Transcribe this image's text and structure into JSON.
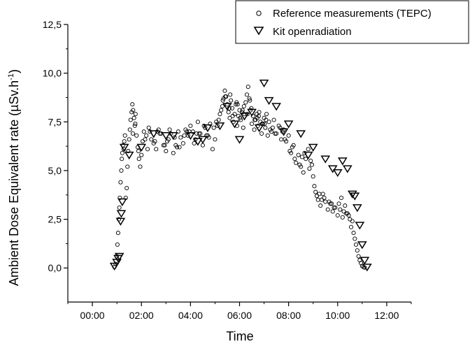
{
  "chart_data": {
    "type": "scatter",
    "xlabel": "Time",
    "ylabel": "Ambient Dose Equivalent rate (µSv.h",
    "ylabel_sup": "-1",
    "ylabel_close": ")",
    "xlim": [
      -1,
      13
    ],
    "ylim": [
      -1.75,
      12.5
    ],
    "xticks": [
      0,
      2,
      4,
      6,
      8,
      10,
      12
    ],
    "xtick_labels": [
      "00:00",
      "02:00",
      "04:00",
      "06:00",
      "08:00",
      "10:00",
      "12:00"
    ],
    "yticks": [
      0,
      2.5,
      5,
      7.5,
      10,
      12.5
    ],
    "ytick_labels": [
      "0,0",
      "2,5",
      "5,0",
      "7,5",
      "10,0",
      "12,5"
    ],
    "grid": false,
    "legend_placement": "top-right",
    "series": [
      {
        "name": "Reference measurements (TEPC)",
        "marker": "circle-open",
        "x": [
          0.9,
          0.95,
          1.0,
          1.02,
          1.05,
          1.08,
          1.1,
          1.12,
          1.15,
          1.18,
          1.2,
          1.22,
          1.25,
          1.28,
          1.3,
          1.33,
          1.36,
          1.4,
          1.43,
          1.46,
          1.5,
          1.53,
          1.56,
          1.6,
          1.63,
          1.66,
          1.7,
          1.73,
          1.76,
          1.8,
          1.85,
          1.9,
          1.95,
          2.0,
          2.05,
          2.1,
          2.2,
          2.3,
          2.4,
          2.5,
          2.6,
          2.7,
          2.8,
          2.9,
          3.0,
          3.1,
          3.2,
          3.3,
          3.4,
          3.5,
          3.6,
          3.7,
          3.8,
          3.9,
          4.0,
          4.1,
          4.2,
          4.3,
          4.4,
          4.5,
          4.6,
          4.7,
          4.8,
          4.9,
          5.0,
          5.1,
          5.2,
          5.3,
          5.35,
          5.4,
          5.45,
          5.5,
          5.55,
          5.6,
          5.65,
          5.7,
          5.75,
          5.8,
          5.85,
          5.9,
          5.95,
          6.0,
          6.05,
          6.1,
          6.15,
          6.2,
          6.25,
          6.3,
          6.35,
          6.4,
          6.45,
          6.5,
          6.55,
          6.6,
          6.65,
          6.7,
          6.75,
          6.8,
          6.85,
          6.9,
          6.95,
          7.0,
          7.05,
          7.1,
          7.15,
          7.2,
          7.3,
          7.4,
          7.5,
          7.6,
          7.7,
          7.8,
          7.9,
          8.0,
          8.1,
          8.2,
          8.3,
          8.4,
          8.5,
          8.6,
          8.7,
          8.8,
          8.9,
          9.0,
          9.05,
          9.1,
          9.15,
          9.2,
          9.3,
          9.4,
          9.5,
          9.6,
          9.7,
          9.8,
          9.9,
          10.0,
          10.1,
          10.2,
          10.3,
          10.4,
          10.5,
          10.55,
          10.6,
          10.65,
          10.7,
          10.75,
          10.8,
          10.85,
          10.9,
          10.95,
          11.0,
          11.05,
          11.1,
          2.15,
          2.35,
          2.55,
          2.75,
          2.95,
          3.15,
          3.35,
          3.55,
          3.75,
          3.95,
          4.15,
          4.35,
          4.55,
          4.75,
          4.95,
          5.15,
          5.25,
          5.42,
          5.58,
          5.72,
          5.88,
          6.02,
          6.18,
          6.32,
          6.48,
          6.62,
          6.78,
          6.92,
          7.08,
          7.25,
          7.45,
          7.65,
          7.85,
          8.05,
          8.25,
          8.45,
          8.65,
          8.85,
          9.25,
          9.45,
          9.65,
          9.85,
          10.05,
          10.25,
          10.45,
          1.65,
          1.75,
          1.88,
          2.25,
          2.65,
          3.05,
          3.45,
          3.85,
          4.25,
          4.65,
          5.05,
          5.32,
          5.62,
          5.92,
          6.12,
          6.42,
          6.72,
          7.02,
          7.35,
          7.75,
          8.15,
          8.55,
          8.95,
          9.35,
          9.75,
          10.15,
          10.35
        ],
        "y": [
          0.05,
          0.2,
          0.6,
          1.2,
          1.8,
          2.5,
          3.1,
          3.6,
          4.4,
          5.0,
          5.6,
          5.9,
          6.3,
          6.1,
          6.5,
          6.8,
          3.6,
          4.1,
          5.2,
          6.0,
          6.6,
          7.1,
          7.6,
          8.0,
          8.4,
          8.1,
          7.7,
          7.3,
          7.9,
          6.8,
          6.2,
          5.6,
          5.2,
          5.8,
          6.5,
          7.0,
          6.8,
          7.2,
          6.6,
          6.4,
          6.1,
          7.1,
          6.9,
          6.3,
          6.0,
          6.6,
          6.9,
          5.9,
          6.3,
          7.0,
          6.7,
          6.4,
          7.1,
          6.8,
          7.3,
          7.0,
          6.6,
          7.5,
          6.9,
          6.3,
          7.2,
          6.8,
          7.4,
          6.1,
          6.6,
          7.3,
          7.9,
          8.3,
          8.7,
          9.1,
          8.8,
          8.4,
          8.0,
          7.7,
          8.6,
          8.2,
          7.5,
          7.9,
          8.4,
          7.3,
          7.8,
          8.1,
          7.6,
          8.0,
          7.2,
          7.9,
          8.5,
          8.9,
          9.3,
          8.7,
          8.1,
          7.4,
          7.8,
          7.1,
          7.6,
          7.9,
          7.3,
          8.0,
          7.5,
          6.9,
          7.4,
          7.7,
          7.2,
          7.9,
          6.8,
          7.5,
          7.0,
          7.6,
          6.9,
          7.3,
          6.6,
          7.1,
          6.5,
          6.8,
          5.9,
          6.3,
          5.4,
          5.8,
          5.2,
          4.9,
          5.6,
          6.1,
          5.5,
          4.7,
          4.2,
          3.9,
          3.7,
          3.5,
          3.2,
          3.8,
          3.4,
          3.0,
          3.3,
          2.9,
          3.1,
          2.7,
          3.0,
          2.6,
          3.2,
          2.8,
          2.5,
          2.1,
          2.4,
          1.8,
          1.5,
          1.2,
          0.9,
          0.6,
          0.4,
          0.25,
          0.1,
          0.05,
          0.02,
          6.6,
          7.0,
          6.5,
          6.9,
          6.3,
          7.1,
          6.7,
          6.2,
          6.8,
          7.0,
          6.4,
          6.9,
          7.3,
          6.7,
          7.2,
          7.6,
          8.1,
          8.8,
          8.2,
          7.8,
          8.5,
          7.7,
          8.3,
          7.9,
          8.2,
          7.6,
          7.8,
          7.4,
          7.6,
          7.1,
          6.9,
          7.2,
          6.6,
          6.0,
          5.6,
          5.3,
          5.9,
          5.1,
          3.8,
          3.6,
          3.4,
          3.1,
          3.3,
          2.9,
          2.7,
          6.9,
          7.4,
          6.0,
          6.1,
          7.0,
          6.5,
          6.2,
          7.0,
          6.9,
          6.8,
          7.5,
          8.6,
          8.9,
          8.4,
          8.1,
          8.6,
          7.7,
          7.4,
          7.2,
          7.0,
          6.2,
          5.7,
          5.3,
          3.5,
          3.3,
          3.6,
          2.8
        ],
        "color": "#000000"
      },
      {
        "name": "Kit openradiation",
        "marker": "triangle-down-open",
        "x": [
          0.9,
          1.0,
          1.05,
          1.1,
          1.15,
          1.18,
          1.22,
          1.3,
          1.5,
          2.0,
          2.5,
          3.0,
          3.3,
          4.0,
          4.3,
          4.5,
          4.7,
          5.2,
          5.5,
          5.8,
          6.0,
          6.2,
          6.5,
          6.8,
          7.0,
          7.2,
          7.5,
          7.8,
          8.0,
          8.5,
          8.8,
          9.0,
          9.5,
          9.8,
          10.0,
          10.2,
          10.4,
          10.6,
          10.7,
          10.8,
          10.9,
          11.0,
          11.1,
          11.2
        ],
        "y": [
          0.1,
          0.3,
          0.5,
          0.6,
          2.4,
          2.8,
          3.4,
          6.2,
          5.8,
          6.2,
          6.9,
          6.8,
          6.8,
          6.8,
          6.5,
          6.6,
          7.2,
          7.3,
          8.3,
          7.4,
          6.6,
          7.8,
          8.0,
          7.2,
          9.5,
          8.6,
          8.3,
          7.0,
          7.4,
          6.9,
          5.8,
          6.2,
          5.6,
          5.1,
          4.9,
          5.5,
          5.1,
          3.8,
          3.7,
          3.1,
          2.2,
          1.2,
          0.4,
          0.05
        ],
        "color": "#000000"
      }
    ]
  }
}
